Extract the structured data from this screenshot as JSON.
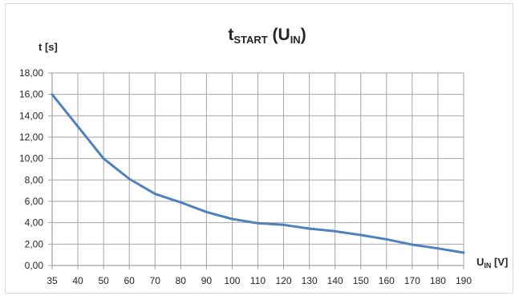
{
  "chart_data": {
    "type": "line",
    "title": {
      "main": "t",
      "sub": "START",
      "open": " (U",
      "sub2": "IN",
      "close": ")"
    },
    "ylabel": "t [s]",
    "xlabel": {
      "main": "U",
      "sub": "IN",
      "unit": " [V]"
    },
    "categories": [
      "35",
      "40",
      "50",
      "60",
      "70",
      "80",
      "90",
      "100",
      "110",
      "120",
      "130",
      "140",
      "150",
      "160",
      "170",
      "180",
      "190"
    ],
    "yticks": [
      "0,00",
      "2,00",
      "4,00",
      "6,00",
      "8,00",
      "10,00",
      "12,00",
      "14,00",
      "16,00",
      "18,00"
    ],
    "ylim": [
      0,
      18
    ],
    "grid": true,
    "legend": "none",
    "series": [
      {
        "color": "#4f81bd",
        "values": [
          16.0,
          13.0,
          10.0,
          8.1,
          6.7,
          5.9,
          5.0,
          4.35,
          3.95,
          3.8,
          3.45,
          3.2,
          2.85,
          2.45,
          1.95,
          1.6,
          1.2
        ]
      }
    ]
  }
}
